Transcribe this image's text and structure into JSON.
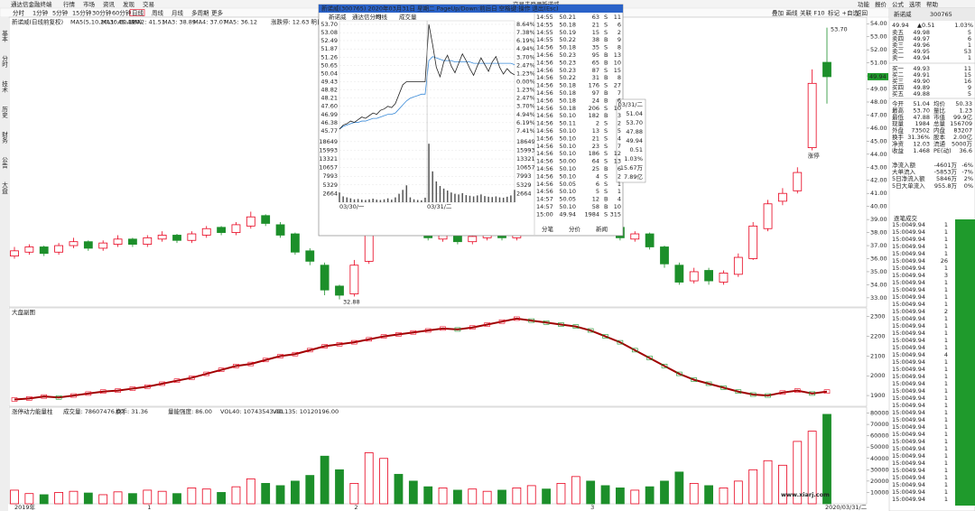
{
  "menu": {
    "app": "通达信金融终端",
    "items": [
      "行情",
      "市场",
      "资讯",
      "发现",
      "交易"
    ],
    "status": [
      "交易未登录",
      "新诺威"
    ],
    "right": [
      "功能",
      "报价",
      "公式",
      "选项",
      "帮助"
    ]
  },
  "toolbar": {
    "periods": [
      "分时",
      "1分钟",
      "5分钟",
      "15分钟",
      "30分钟",
      "60分钟",
      "日线",
      "周线",
      "月线",
      "多周期",
      "更多"
    ],
    "active": 6,
    "tools": [
      "叠加",
      "画线",
      "关联",
      "F10",
      "标记",
      "+自选",
      "返回"
    ]
  },
  "sidebar": [
    "基本",
    "分时",
    "技术",
    "历史",
    "财务",
    "公告",
    "大盘"
  ],
  "main_chart": {
    "title": "新诺威(日线前复权)",
    "indicators": [
      "MA5(5,10,20,30,60,120)",
      "MA1: 45.48",
      "MA2: 41.51",
      "MA3: 38.89",
      "MA4: 37.07",
      "MA5: 36.12"
    ],
    "extra": "涨跌停: 12.63 明日价格",
    "ylim": [
      32.3,
      54.5
    ],
    "yticks": [
      {
        "value": 33,
        "label": "33.00"
      },
      {
        "value": 34,
        "label": "34.00"
      },
      {
        "value": 35,
        "label": "35.00"
      },
      {
        "value": 36,
        "label": "36.00"
      },
      {
        "value": 37,
        "label": "37.00"
      },
      {
        "value": 38,
        "label": "38.00"
      },
      {
        "value": 39,
        "label": "39.00"
      },
      {
        "value": 40,
        "label": "40.00"
      },
      {
        "value": 41,
        "label": "41.00"
      },
      {
        "value": 42,
        "label": "42.00"
      },
      {
        "value": 43,
        "label": "43.00"
      },
      {
        "value": 44,
        "label": "44.00"
      },
      {
        "value": 45,
        "label": "45.00"
      },
      {
        "value": 46,
        "label": "46.00"
      },
      {
        "value": 47,
        "label": "47.00"
      },
      {
        "value": 48,
        "label": "48.00"
      },
      {
        "value": 49,
        "label": "49.00"
      },
      {
        "value": 50,
        "label": "50.00"
      },
      {
        "value": 51,
        "label": "51.00"
      },
      {
        "value": 52,
        "label": "52.00"
      },
      {
        "value": 53,
        "label": "53.00"
      },
      {
        "value": 54,
        "label": "54.00"
      }
    ],
    "open": [
      36.2,
      36.5,
      36.9,
      36.5,
      37.0,
      37.3,
      36.8,
      37.1,
      37.5,
      37.1,
      37.5,
      37.8,
      37.4,
      37.8,
      38.4,
      38.0,
      38.5,
      39.3,
      38.6,
      37.9,
      36.6,
      35.5,
      33.9,
      33.3,
      35.8,
      39.6,
      40.5,
      39.1,
      38.3,
      37.5,
      37.9,
      37.3,
      37.6,
      38.1,
      37.6,
      38.0,
      38.6,
      38.1,
      38.8,
      39.7,
      38.9,
      38.4,
      37.5,
      37.9,
      36.9,
      35.5,
      34.3,
      35.1,
      34.2,
      34.8,
      36.0,
      38.3,
      40.4,
      41.2,
      44.5,
      51.04
    ],
    "high": [
      36.9,
      37.1,
      37.0,
      37.2,
      37.6,
      37.4,
      37.4,
      37.8,
      37.6,
      37.8,
      38.1,
      37.9,
      38.1,
      38.5,
      38.5,
      38.8,
      39.6,
      39.4,
      38.8,
      38.0,
      36.8,
      35.7,
      34.0,
      35.9,
      40.3,
      41.2,
      40.7,
      39.3,
      38.5,
      38.2,
      38.0,
      37.9,
      38.2,
      38.3,
      38.3,
      38.7,
      38.8,
      39.1,
      39.9,
      39.9,
      39.1,
      38.6,
      38.1,
      38.0,
      37.0,
      35.7,
      35.3,
      35.3,
      35.1,
      36.4,
      38.8,
      40.5,
      41.4,
      43.0,
      50.5,
      53.7
    ],
    "low": [
      36.0,
      36.3,
      36.2,
      36.3,
      36.8,
      36.6,
      36.6,
      36.9,
      36.9,
      36.9,
      37.3,
      37.2,
      37.2,
      37.6,
      37.8,
      37.8,
      38.3,
      38.5,
      37.6,
      36.3,
      35.5,
      33.2,
      32.88,
      33.1,
      35.6,
      39.3,
      38.8,
      38.0,
      37.4,
      37.3,
      37.1,
      37.1,
      37.4,
      37.4,
      37.4,
      37.8,
      38.0,
      37.9,
      38.6,
      38.6,
      38.1,
      37.4,
      37.3,
      36.7,
      35.3,
      34.0,
      34.1,
      34.0,
      34.0,
      34.6,
      35.9,
      38.1,
      40.1,
      41.0,
      44.3,
      47.88
    ],
    "close": [
      36.6,
      36.9,
      36.4,
      37.0,
      37.3,
      36.8,
      37.2,
      37.5,
      37.1,
      37.6,
      37.8,
      37.4,
      37.9,
      38.3,
      38.0,
      38.6,
      39.2,
      38.7,
      37.8,
      36.5,
      35.8,
      33.6,
      33.2,
      35.5,
      39.8,
      40.6,
      39.0,
      38.2,
      37.6,
      37.9,
      37.3,
      37.7,
      38.0,
      37.6,
      38.1,
      38.5,
      38.2,
      38.9,
      39.6,
      38.8,
      38.3,
      37.6,
      37.9,
      36.9,
      35.6,
      34.2,
      35.0,
      34.3,
      34.9,
      36.1,
      38.5,
      40.2,
      41.0,
      42.6,
      49.43,
      49.94
    ],
    "high_label": "53.70",
    "low_label": "32.88",
    "tag": "涨停",
    "price_tag": "49.94"
  },
  "sub_chart": {
    "title": "大盘副图",
    "ylim": [
      1850,
      2340
    ],
    "yticks": [
      1900,
      2000,
      2100,
      2200,
      2300
    ],
    "values": [
      1880,
      1885,
      1895,
      1890,
      1900,
      1910,
      1920,
      1925,
      1935,
      1945,
      1960,
      1975,
      1990,
      2010,
      2030,
      2050,
      2060,
      2080,
      2100,
      2110,
      2130,
      2150,
      2160,
      2170,
      2185,
      2200,
      2210,
      2220,
      2230,
      2240,
      2235,
      2245,
      2260,
      2275,
      2290,
      2280,
      2270,
      2260,
      2250,
      2230,
      2200,
      2170,
      2130,
      2090,
      2050,
      2010,
      1980,
      1960,
      1940,
      1920,
      1905,
      1900,
      1915,
      1925,
      1910,
      1920
    ]
  },
  "volume_chart": {
    "title": "涨停动力能量柱",
    "legend": [
      "成交量: 78607476.00",
      "换手: 31.36",
      "量能强度: 86.00",
      "VOL40: 10743543.00",
      "VOL135: 10120196.00"
    ],
    "ylim": [
      0,
      82000
    ],
    "yticks": [
      10000,
      20000,
      30000,
      40000,
      50000,
      60000,
      70000,
      80000
    ],
    "values": [
      12000,
      9000,
      8000,
      10000,
      11000,
      9500,
      8000,
      10500,
      9000,
      12000,
      11000,
      9000,
      14000,
      13000,
      10000,
      15000,
      22000,
      18000,
      16000,
      20000,
      25000,
      42000,
      30000,
      18000,
      45000,
      40000,
      26000,
      20000,
      15000,
      14000,
      12000,
      13000,
      11000,
      12000,
      14000,
      16000,
      13000,
      18000,
      24000,
      20000,
      16000,
      14000,
      12000,
      15000,
      20000,
      28000,
      18000,
      16000,
      14000,
      20000,
      30000,
      38000,
      34000,
      55000,
      64000,
      78860
    ]
  },
  "date_axis": {
    "labels": [
      "2019年",
      "1",
      "2",
      "3"
    ],
    "current": "2020/03/31/二"
  },
  "popup": {
    "title": "新诺威(300765) 2020年03月31日 星期二 PageUp/Down:前后日 空格键:操作 退出(Esc)",
    "subtitle": [
      "新诺威",
      "通达信分时",
      "均线",
      "成交量"
    ],
    "ylim": [
      45.43,
      53.9
    ],
    "yticks": [
      {
        "value": 53.7,
        "label": "53.70",
        "pct": "8.64%"
      },
      {
        "value": 53.08,
        "label": "53.08",
        "pct": "7.38%"
      },
      {
        "value": 52.49,
        "label": "52.49",
        "pct": "6.19%"
      },
      {
        "value": 51.87,
        "label": "51.87",
        "pct": "4.94%"
      },
      {
        "value": 51.26,
        "label": "51.26",
        "pct": "3.70%"
      },
      {
        "value": 50.65,
        "label": "50.65",
        "pct": "2.47%"
      },
      {
        "value": 50.04,
        "label": "50.04",
        "pct": "1.23%"
      },
      {
        "value": 49.43,
        "label": "49.43",
        "pct": "0.00%"
      },
      {
        "value": 48.82,
        "label": "48.82",
        "pct": "1.23%"
      },
      {
        "value": 48.21,
        "label": "48.21",
        "pct": "2.47%"
      },
      {
        "value": 47.6,
        "label": "47.60",
        "pct": "3.70%"
      },
      {
        "value": 46.99,
        "label": "46.99",
        "pct": "4.94%"
      },
      {
        "value": 46.38,
        "label": "46.38",
        "pct": "6.19%"
      },
      {
        "value": 45.77,
        "label": "45.77",
        "pct": "7.41%"
      }
    ],
    "price": [
      45.9,
      46.2,
      46.3,
      46.5,
      46.4,
      46.6,
      46.8,
      46.7,
      46.9,
      47.1,
      47.0,
      47.3,
      47.4,
      47.6,
      47.5,
      47.8,
      48.5,
      49.2,
      49.43,
      49.43,
      49.43,
      49.43,
      49.43,
      49.43,
      53.7,
      52.2,
      50.5,
      49.8,
      50.9,
      51.4,
      50.6,
      50.1,
      50.8,
      51.5,
      51.0,
      50.4,
      49.9,
      50.6,
      51.2,
      50.7,
      50.2,
      50.9,
      51.3,
      50.5,
      50.0,
      50.4,
      50.1,
      49.94
    ],
    "average": [
      45.9,
      46.1,
      46.2,
      46.3,
      46.4,
      46.4,
      46.5,
      46.5,
      46.6,
      46.7,
      46.7,
      46.8,
      46.9,
      47.0,
      47.0,
      47.1,
      47.4,
      47.7,
      48.0,
      48.2,
      48.3,
      48.4,
      48.5,
      48.5,
      51.0,
      51.3,
      51.2,
      51.1,
      51.0,
      51.0,
      51.0,
      50.9,
      50.9,
      50.9,
      50.9,
      50.9,
      50.8,
      50.8,
      50.8,
      50.8,
      50.8,
      50.8,
      50.8,
      50.8,
      50.8,
      50.8,
      50.8,
      50.7
    ],
    "vlim": [
      0,
      20000
    ],
    "vticks": [
      18649,
      15993,
      13321,
      10657,
      7993,
      5329,
      2664
    ],
    "volume": [
      3000,
      1800,
      1500,
      1200,
      900,
      1000,
      800,
      700,
      900,
      1100,
      800,
      700,
      900,
      1200,
      800,
      1500,
      2600,
      3800,
      5200,
      1500,
      900,
      700,
      600,
      1400,
      18000,
      9500,
      6400,
      5000,
      4200,
      3600,
      3000,
      2600,
      2400,
      2800,
      2200,
      2000,
      1800,
      2100,
      2400,
      1900,
      1700,
      1600,
      1800,
      1500,
      1400,
      1700,
      2100,
      3800
    ],
    "days": [
      "03/30/一",
      "03/31/二"
    ],
    "tooltip": [
      "03/31/二",
      "51.04",
      "53.70",
      "47.88",
      "49.94",
      "0.51",
      "1.03%",
      "15.67万",
      "7.89亿"
    ]
  },
  "trades": {
    "rows": [
      [
        "14:55",
        "50.21",
        "63",
        "S",
        "11"
      ],
      [
        "14:55",
        "50.18",
        "21",
        "S",
        "6"
      ],
      [
        "14:55",
        "50.19",
        "15",
        "S",
        "2"
      ],
      [
        "14:55",
        "50.22",
        "38",
        "B",
        "9"
      ],
      [
        "14:56",
        "50.18",
        "35",
        "S",
        "8"
      ],
      [
        "14:56",
        "50.23",
        "95",
        "B",
        "13"
      ],
      [
        "14:56",
        "50.23",
        "65",
        "B",
        "10"
      ],
      [
        "14:56",
        "50.23",
        "87",
        "S",
        "15"
      ],
      [
        "14:56",
        "50.22",
        "31",
        "B",
        "8"
      ],
      [
        "14:56",
        "50.18",
        "176",
        "S",
        "27"
      ],
      [
        "14:56",
        "50.18",
        "97",
        "B",
        "7"
      ],
      [
        "14:56",
        "50.18",
        "24",
        "B",
        "6"
      ],
      [
        "14:56",
        "50.18",
        "206",
        "S",
        "10"
      ],
      [
        "14:56",
        "50.10",
        "182",
        "B",
        "3"
      ],
      [
        "14:56",
        "50.11",
        "2",
        "S",
        "2"
      ],
      [
        "14:56",
        "50.10",
        "13",
        "S",
        "5"
      ],
      [
        "14:56",
        "50.10",
        "21",
        "S",
        "4"
      ],
      [
        "14:56",
        "50.10",
        "23",
        "S",
        "7"
      ],
      [
        "14:56",
        "50.10",
        "186",
        "S",
        "12"
      ],
      [
        "14:56",
        "50.00",
        "64",
        "S",
        "13"
      ],
      [
        "14:56",
        "50.10",
        "25",
        "B",
        "6"
      ],
      [
        "14:56",
        "50.10",
        "4",
        "S",
        "2"
      ],
      [
        "14:56",
        "50.05",
        "6",
        "S",
        "1"
      ],
      [
        "14:56",
        "50.10",
        "5",
        "S",
        "1"
      ],
      [
        "14:57",
        "50.05",
        "12",
        "B",
        "4"
      ],
      [
        "14:57",
        "50.10",
        "58",
        "B",
        "10"
      ],
      [
        "15:00",
        "49.94",
        "1984",
        "S",
        "315"
      ]
    ],
    "tabs": [
      "分笔",
      "分价",
      "新闻"
    ]
  },
  "quote": {
    "name": "新诺威",
    "code": "300765",
    "price": "49.94",
    "change": "▲0.51",
    "pct": "1.03%",
    "asks": [
      [
        "卖五",
        "49.98",
        "5"
      ],
      [
        "卖四",
        "49.97",
        "6"
      ],
      [
        "卖三",
        "49.96",
        "1"
      ],
      [
        "卖二",
        "49.95",
        "53"
      ],
      [
        "卖一",
        "49.94",
        "1"
      ]
    ],
    "bids": [
      [
        "买一",
        "49.93",
        "11"
      ],
      [
        "买二",
        "49.91",
        "15"
      ],
      [
        "买三",
        "49.90",
        "16"
      ],
      [
        "买四",
        "49.89",
        "9"
      ],
      [
        "买五",
        "49.88",
        "5"
      ]
    ],
    "stats": [
      [
        "今开",
        "51.04",
        "均价",
        "50.33"
      ],
      [
        "最高",
        "53.70",
        "量比",
        "1.23"
      ],
      [
        "最低",
        "47.88",
        "市值",
        "99.9亿"
      ],
      [
        "现量",
        "1984",
        "总量",
        "156709"
      ],
      [
        "外盘",
        "73502",
        "内盘",
        "83207"
      ],
      [
        "换手",
        "31.36%",
        "股本",
        "2.00亿"
      ],
      [
        "净资",
        "12.03",
        "流通",
        "5000万"
      ],
      [
        "收益",
        "1.468",
        "PE(动)",
        "36.6"
      ]
    ],
    "flows": [
      [
        "净流入额",
        "-4601万",
        "-6%"
      ],
      [
        "大单流入",
        "-5853万",
        "-7%"
      ],
      [
        "5日净流入额",
        "5846万",
        "2%"
      ],
      [
        "5日大单流入",
        "955.8万",
        "0%"
      ]
    ],
    "ticks_title": "逐笔成交",
    "ticks": [
      [
        "15:00",
        "49.94",
        "1"
      ],
      [
        "15:00",
        "49.94",
        "1"
      ],
      [
        "15:00",
        "49.94",
        "1"
      ],
      [
        "15:00",
        "49.94",
        "1"
      ],
      [
        "15:00",
        "49.94",
        "1"
      ],
      [
        "15:00",
        "49.94",
        "26"
      ],
      [
        "15:00",
        "49.94",
        "1"
      ],
      [
        "15:00",
        "49.94",
        "3"
      ],
      [
        "15:00",
        "49.94",
        "1"
      ],
      [
        "15:00",
        "49.94",
        "1"
      ],
      [
        "15:00",
        "49.94",
        "1"
      ],
      [
        "15:00",
        "49.94",
        "1"
      ],
      [
        "15:00",
        "49.94",
        "2"
      ],
      [
        "15:00",
        "49.94",
        "1"
      ],
      [
        "15:00",
        "49.94",
        "1"
      ],
      [
        "15:00",
        "49.94",
        "1"
      ],
      [
        "15:00",
        "49.94",
        "1"
      ],
      [
        "15:00",
        "49.94",
        "1"
      ],
      [
        "15:00",
        "49.94",
        "4"
      ],
      [
        "15:00",
        "49.94",
        "1"
      ],
      [
        "15:00",
        "49.94",
        "1"
      ],
      [
        "15:00",
        "49.94",
        "1"
      ],
      [
        "15:00",
        "49.94",
        "1"
      ],
      [
        "15:00",
        "49.94",
        "1"
      ],
      [
        "15:00",
        "49.94",
        "1"
      ],
      [
        "15:00",
        "49.94",
        "1"
      ],
      [
        "15:00",
        "49.94",
        "1"
      ],
      [
        "15:00",
        "49.94",
        "1"
      ],
      [
        "15:00",
        "49.94",
        "1"
      ],
      [
        "15:00",
        "49.94",
        "1"
      ],
      [
        "15:00",
        "49.94",
        "1"
      ],
      [
        "15:00",
        "49.94",
        "1"
      ],
      [
        "15:00",
        "49.94",
        "1"
      ],
      [
        "15:00",
        "49.94",
        "1"
      ],
      [
        "15:00",
        "49.94",
        "1"
      ],
      [
        "15:00",
        "49.94",
        "1"
      ],
      [
        "15:00",
        "49.94",
        "1"
      ],
      [
        "15:00",
        "49.94",
        "1"
      ],
      [
        "15:00",
        "49.94",
        "1"
      ]
    ]
  },
  "watermark": "www.xiarj.com"
}
